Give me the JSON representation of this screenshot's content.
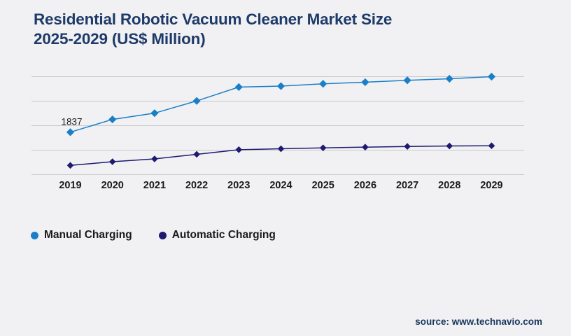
{
  "header": {
    "title_line1": "Residential Robotic Vacuum Cleaner Market Size",
    "title_line2": "2025-2029 (US$ Million)"
  },
  "chart_data": {
    "type": "line",
    "title": "Residential Robotic Vacuum Cleaner Market Size 2025-2029 (US$ Million)",
    "categories": [
      "2019",
      "2020",
      "2021",
      "2022",
      "2023",
      "2024",
      "2025",
      "2026",
      "2027",
      "2028",
      "2029"
    ],
    "series": [
      {
        "name": "Manual Charging",
        "color": "#1a7fc8",
        "marker": "diamond",
        "values": [
          1837,
          2390,
          2660,
          3190,
          3790,
          3830,
          3930,
          4000,
          4080,
          4150,
          4240
        ]
      },
      {
        "name": "Automatic Charging",
        "color": "#1e1a70",
        "marker": "diamond",
        "values": [
          400,
          560,
          680,
          880,
          1080,
          1120,
          1160,
          1190,
          1220,
          1240,
          1250
        ]
      }
    ],
    "data_labels": [
      {
        "series_index": 0,
        "category_index": 0,
        "text": "1837"
      }
    ],
    "xlabel": "",
    "ylabel": "",
    "ylim": [
      0,
      4240
    ],
    "grid": "horizontal",
    "gridline_count": 5,
    "y_axis_labels_shown": false,
    "legend_position": "bottom-left"
  },
  "legend": {
    "items": [
      {
        "label": "Manual Charging",
        "color": "#1a7fc8"
      },
      {
        "label": "Automatic Charging",
        "color": "#1e1a70"
      }
    ]
  },
  "footer": {
    "source": "source: www.technavio.com"
  },
  "colors": {
    "background": "#f1f1f3",
    "title": "#1e3a68",
    "gridline": "#c9c9cb",
    "axis_text": "#1a1a1a",
    "data_label_text": "#1a1a1a",
    "source_text": "#17365d"
  }
}
